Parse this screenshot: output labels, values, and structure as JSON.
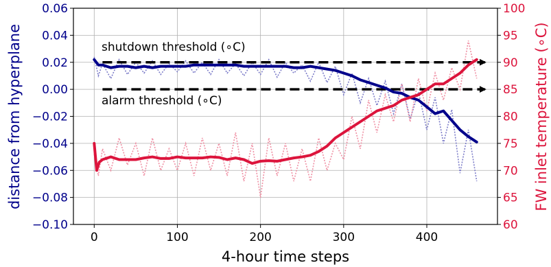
{
  "chart_data": {
    "type": "line",
    "xlabel": "4-hour time steps",
    "ylabel_left": "distance from hyperplane",
    "ylabel_right": "FW inlet temperature (∘C)",
    "xlim": [
      -25,
      485
    ],
    "ylim_left": [
      -0.1,
      0.06
    ],
    "ylim_right": [
      60,
      100
    ],
    "x_ticks": [
      0,
      100,
      200,
      300,
      400
    ],
    "x_tick_labels": [
      "0",
      "100",
      "200",
      "300",
      "400"
    ],
    "left_ticks": [
      -0.1,
      -0.08,
      -0.06,
      -0.04,
      -0.02,
      0.0,
      0.02,
      0.04,
      0.06
    ],
    "left_tick_labels": [
      "−0.10",
      "−0.08",
      "−0.06",
      "−0.04",
      "−0.02",
      "0.00",
      "0.02",
      "0.04",
      "0.06"
    ],
    "right_ticks": [
      60,
      65,
      70,
      75,
      80,
      85,
      90,
      95,
      100
    ],
    "right_tick_labels": [
      "60",
      "65",
      "70",
      "75",
      "80",
      "85",
      "90",
      "95",
      "100"
    ],
    "grid": true,
    "colors": {
      "left": "#00008b",
      "right": "#dc143c",
      "left_raw": "#7b7bc8",
      "right_raw": "#ef8fa3"
    },
    "annotations": [
      {
        "text": "shutdown threshold (∘C)",
        "y_right": 90
      },
      {
        "text": "alarm threshold (∘C)",
        "y_right": 85
      }
    ],
    "series": [
      {
        "axis": "left",
        "style": "smoothed",
        "x": [
          0,
          5,
          10,
          20,
          30,
          40,
          50,
          60,
          70,
          80,
          90,
          100,
          110,
          120,
          130,
          140,
          150,
          160,
          170,
          180,
          190,
          200,
          210,
          220,
          230,
          240,
          250,
          260,
          270,
          280,
          290,
          300,
          310,
          320,
          330,
          340,
          350,
          360,
          370,
          380,
          390,
          400,
          410,
          420,
          430,
          440,
          450,
          460
        ],
        "values": [
          0.022,
          0.018,
          0.018,
          0.016,
          0.017,
          0.017,
          0.016,
          0.017,
          0.016,
          0.017,
          0.017,
          0.017,
          0.017,
          0.018,
          0.018,
          0.018,
          0.018,
          0.018,
          0.018,
          0.017,
          0.017,
          0.017,
          0.017,
          0.017,
          0.017,
          0.016,
          0.016,
          0.017,
          0.016,
          0.015,
          0.014,
          0.012,
          0.01,
          0.007,
          0.005,
          0.003,
          0.001,
          -0.002,
          -0.003,
          -0.006,
          -0.008,
          -0.013,
          -0.018,
          -0.016,
          -0.023,
          -0.03,
          -0.035,
          -0.039
        ]
      },
      {
        "axis": "right",
        "style": "smoothed",
        "x": [
          0,
          3,
          6,
          10,
          20,
          30,
          40,
          50,
          60,
          70,
          80,
          90,
          100,
          110,
          120,
          130,
          140,
          150,
          160,
          170,
          180,
          190,
          200,
          210,
          220,
          230,
          240,
          250,
          260,
          270,
          280,
          290,
          300,
          310,
          320,
          330,
          340,
          350,
          360,
          370,
          380,
          390,
          400,
          410,
          420,
          430,
          440,
          450,
          460
        ],
        "values": [
          75,
          70,
          71.5,
          72,
          72.5,
          72,
          72,
          72,
          72.3,
          72.5,
          72.2,
          72.2,
          72.5,
          72.3,
          72.3,
          72.3,
          72.5,
          72.4,
          72,
          72.3,
          72,
          71.3,
          71.7,
          71.8,
          71.7,
          72,
          72.3,
          72.5,
          72.8,
          73.5,
          74.5,
          76,
          77,
          78,
          79,
          80,
          81,
          81.5,
          82,
          83,
          83.5,
          84,
          85,
          86,
          86,
          87,
          88,
          89.5,
          90.5
        ]
      },
      {
        "axis": "left",
        "style": "raw",
        "x": [
          0,
          5,
          10,
          20,
          30,
          40,
          50,
          60,
          70,
          80,
          90,
          100,
          110,
          120,
          130,
          140,
          150,
          160,
          170,
          180,
          190,
          200,
          210,
          220,
          230,
          240,
          250,
          260,
          270,
          280,
          290,
          300,
          310,
          320,
          330,
          340,
          350,
          360,
          370,
          380,
          390,
          400,
          410,
          420,
          430,
          440,
          450,
          460
        ],
        "values": [
          0.024,
          0.01,
          0.019,
          0.008,
          0.022,
          0.011,
          0.02,
          0.012,
          0.021,
          0.011,
          0.019,
          0.013,
          0.021,
          0.012,
          0.02,
          0.011,
          0.022,
          0.012,
          0.019,
          0.01,
          0.02,
          0.011,
          0.022,
          0.009,
          0.02,
          0.012,
          0.018,
          0.006,
          0.02,
          0.005,
          0.017,
          -0.004,
          0.012,
          -0.01,
          0.008,
          -0.012,
          0.006,
          -0.018,
          0.004,
          -0.022,
          -0.002,
          -0.03,
          -0.006,
          -0.04,
          -0.015,
          -0.062,
          -0.03,
          -0.068
        ]
      },
      {
        "axis": "right",
        "style": "raw",
        "x": [
          0,
          5,
          10,
          20,
          30,
          40,
          50,
          60,
          70,
          80,
          90,
          100,
          110,
          120,
          130,
          140,
          150,
          160,
          170,
          180,
          190,
          200,
          210,
          220,
          230,
          240,
          250,
          260,
          270,
          280,
          290,
          300,
          310,
          320,
          330,
          340,
          350,
          360,
          370,
          380,
          390,
          400,
          410,
          420,
          430,
          440,
          450,
          460
        ],
        "values": [
          73,
          69,
          74,
          70,
          76,
          71,
          75,
          69,
          76,
          70,
          74,
          70,
          75,
          69,
          76,
          70,
          75,
          69,
          77,
          68,
          75,
          65,
          76,
          69,
          75,
          68,
          74,
          68,
          76,
          70,
          75,
          72,
          80,
          74,
          83,
          77,
          84,
          79,
          86,
          79,
          87,
          81,
          88,
          83,
          89,
          85,
          94,
          87
        ]
      }
    ]
  }
}
